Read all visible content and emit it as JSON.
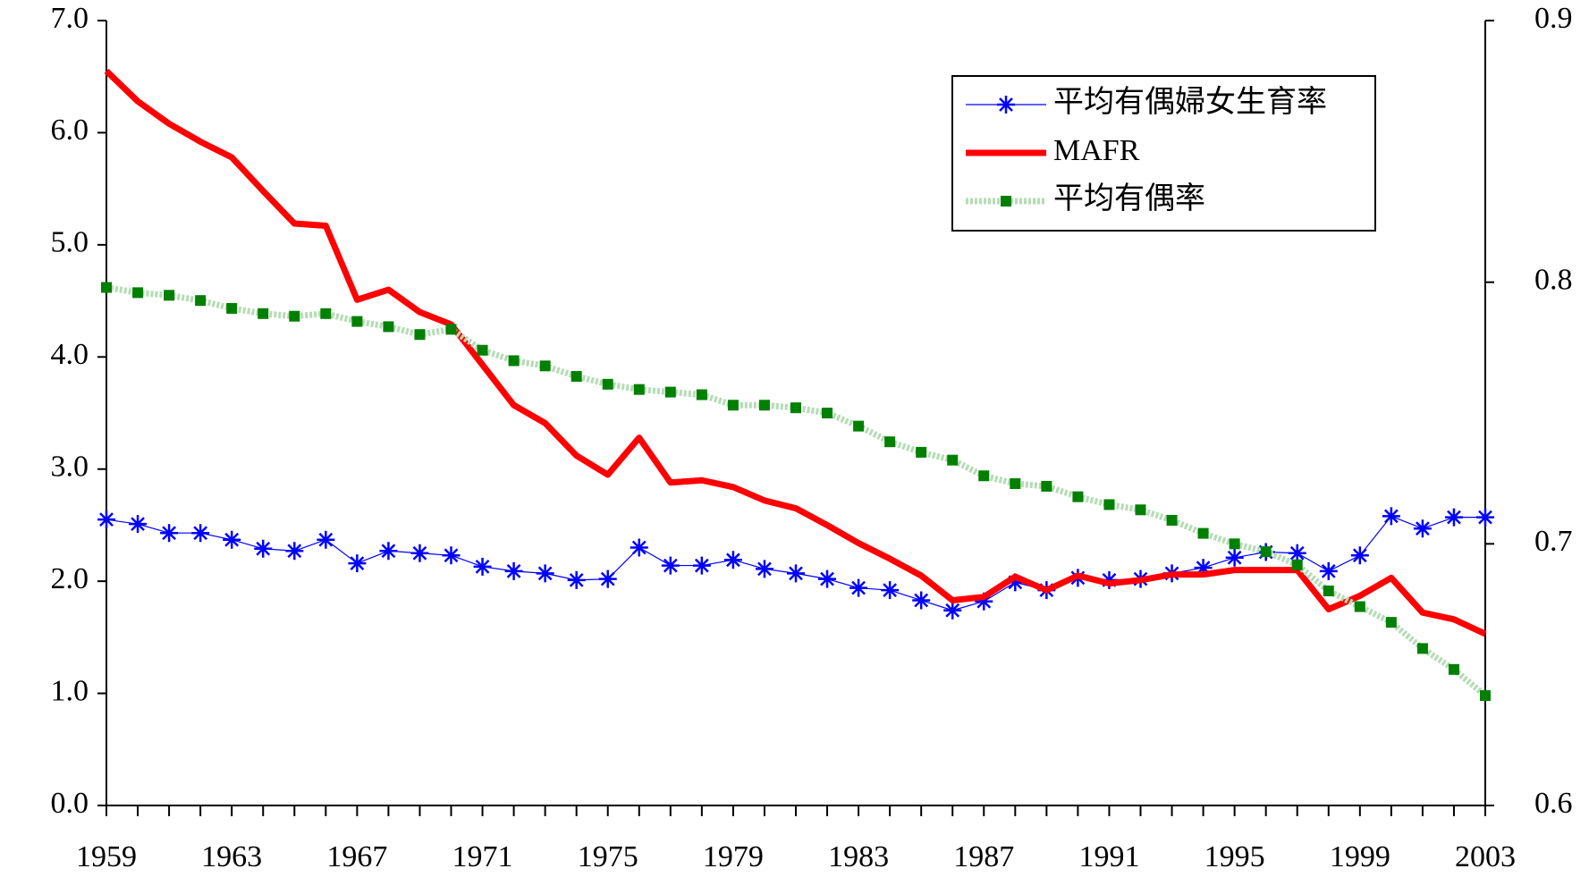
{
  "chart_data": {
    "type": "line",
    "categories": [
      "1959",
      null,
      null,
      null,
      "1963",
      null,
      null,
      null,
      "1967",
      null,
      null,
      null,
      "1971",
      null,
      null,
      null,
      "1975",
      null,
      null,
      null,
      "1979",
      null,
      null,
      null,
      "1983",
      null,
      null,
      null,
      "1987",
      null,
      null,
      null,
      "1991",
      null,
      null,
      null,
      "1995",
      null,
      null,
      null,
      "1999",
      null,
      null,
      null,
      "2003"
    ],
    "series": [
      {
        "name": "平均有偶婦女生育率",
        "color": "#0000ff",
        "values": [
          2.55,
          2.51,
          2.43,
          2.43,
          2.37,
          2.29,
          2.27,
          2.37,
          2.16,
          2.27,
          2.25,
          2.23,
          2.13,
          2.09,
          2.07,
          2.01,
          2.02,
          2.3,
          2.14,
          2.14,
          2.19,
          2.11,
          2.07,
          2.02,
          1.94,
          1.92,
          1.83,
          1.74,
          1.82,
          1.99,
          1.92,
          2.03,
          2.01,
          2.02,
          2.07,
          2.12,
          2.21,
          2.26,
          2.25,
          2.09,
          2.23,
          2.58,
          2.47,
          2.57,
          2.57
        ]
      },
      {
        "name": "MAFR",
        "color": "#ff0000",
        "values": [
          6.55,
          6.28,
          6.08,
          5.92,
          5.78,
          5.48,
          5.19,
          5.17,
          4.51,
          4.6,
          4.4,
          4.29,
          3.93,
          3.57,
          3.41,
          3.12,
          2.95,
          3.28,
          2.88,
          2.9,
          2.84,
          2.72,
          2.65,
          2.5,
          2.34,
          2.2,
          2.05,
          1.83,
          1.86,
          2.04,
          1.92,
          2.05,
          1.98,
          2.01,
          2.06,
          2.06,
          2.1,
          2.1,
          2.1,
          1.75,
          1.87,
          2.03,
          1.72,
          1.66,
          1.53
        ]
      },
      {
        "name": "平均有偶率",
        "color": "#008000",
        "axis": "y2",
        "values": [
          0.798,
          0.796,
          0.795,
          0.793,
          0.79,
          0.788,
          0.787,
          0.788,
          0.785,
          0.783,
          0.78,
          0.782,
          0.774,
          0.77,
          0.768,
          0.764,
          0.761,
          0.759,
          0.758,
          0.757,
          0.753,
          0.753,
          0.752,
          0.75,
          0.745,
          0.739,
          0.735,
          0.732,
          0.726,
          0.723,
          0.722,
          0.718,
          0.715,
          0.713,
          0.709,
          0.704,
          0.7,
          0.697,
          0.692,
          0.682,
          0.676,
          0.67,
          0.66,
          0.652,
          0.642
        ]
      }
    ],
    "ylim": [
      0,
      7
    ],
    "yticks": [
      {
        "value": 0,
        "label": "0.0"
      },
      {
        "value": 1,
        "label": "1.0"
      },
      {
        "value": 2,
        "label": "2.0"
      },
      {
        "value": 3,
        "label": "3.0"
      },
      {
        "value": 4,
        "label": "4.0"
      },
      {
        "value": 5,
        "label": "5.0"
      },
      {
        "value": 6,
        "label": "6.0"
      },
      {
        "value": 7,
        "label": "7.0"
      }
    ],
    "y2lim": [
      0.6,
      0.9
    ],
    "y2ticks": [
      0.6,
      0.7,
      0.8,
      0.9
    ],
    "legend": "upper right",
    "grid": false
  }
}
